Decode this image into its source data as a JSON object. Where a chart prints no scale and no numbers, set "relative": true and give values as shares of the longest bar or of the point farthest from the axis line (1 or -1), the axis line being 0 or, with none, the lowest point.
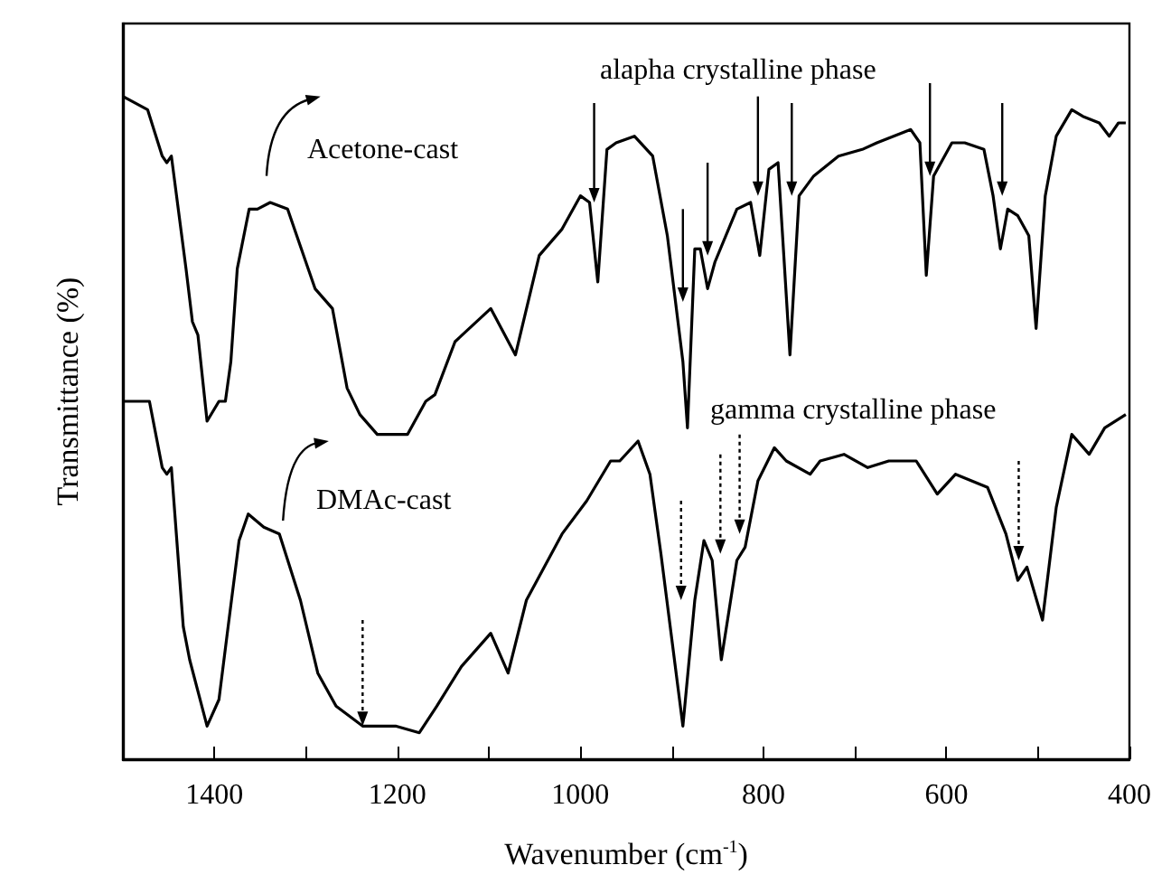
{
  "chart_data": {
    "type": "line",
    "xlabel": "Wavenumber (cm$^{-1}$)",
    "ylabel": "Transmittance (%)",
    "relative": true,
    "tick_labels": "x",
    "xlim": [
      1500,
      400
    ],
    "xticks": [
      {
        "value": 1500,
        "label": null
      },
      1400,
      {
        "value": 1300,
        "label": null
      },
      1200,
      {
        "value": 1100,
        "label": null
      },
      1000,
      {
        "value": 900,
        "label": null
      },
      800,
      {
        "value": 700,
        "label": null
      },
      600,
      {
        "value": 500,
        "label": null
      },
      400
    ],
    "annotations": [
      "Acetone-cast",
      "DMAc-cast",
      "alapha crystalline phase",
      "gamma crystalline phase"
    ],
    "series": [
      {
        "color": "#000000",
        "x": [
          1500,
          1473,
          1457,
          1452,
          1447,
          1431,
          1424,
          1418,
          1408,
          1395,
          1388,
          1382,
          1375,
          1362,
          1353,
          1339,
          1320,
          1300,
          1290,
          1271,
          1255,
          1241,
          1222,
          1189,
          1169,
          1159,
          1137,
          1098,
          1071,
          1045,
          1020,
          1000,
          990,
          981,
          971,
          961,
          941,
          921,
          905,
          888,
          883,
          875,
          869,
          861,
          853,
          829,
          814,
          804,
          794,
          784,
          771,
          761,
          745,
          718,
          692,
          676,
          639,
          629,
          622,
          614,
          594,
          580,
          559,
          549,
          541,
          533,
          522,
          510,
          502,
          492,
          480,
          463,
          451,
          433,
          422,
          412,
          404
        ],
        "values": [
          1.0,
          0.98,
          0.91,
          0.9,
          0.91,
          0.74,
          0.66,
          0.64,
          0.51,
          0.54,
          0.54,
          0.6,
          0.74,
          0.83,
          0.83,
          0.84,
          0.83,
          0.75,
          0.71,
          0.68,
          0.56,
          0.52,
          0.49,
          0.49,
          0.54,
          0.55,
          0.63,
          0.68,
          0.61,
          0.76,
          0.8,
          0.85,
          0.84,
          0.72,
          0.92,
          0.93,
          0.94,
          0.91,
          0.79,
          0.6,
          0.5,
          0.77,
          0.77,
          0.71,
          0.75,
          0.83,
          0.84,
          0.76,
          0.89,
          0.9,
          0.61,
          0.85,
          0.88,
          0.91,
          0.92,
          0.93,
          0.95,
          0.93,
          0.73,
          0.88,
          0.93,
          0.93,
          0.92,
          0.85,
          0.77,
          0.83,
          0.82,
          0.79,
          0.65,
          0.85,
          0.94,
          0.98,
          0.97,
          0.96,
          0.94,
          0.96,
          0.96
        ]
      },
      {
        "color": "#000000",
        "x": [
          1500,
          1471,
          1457,
          1452,
          1447,
          1434,
          1427,
          1408,
          1395,
          1385,
          1373,
          1363,
          1346,
          1329,
          1306,
          1287,
          1267,
          1238,
          1225,
          1202,
          1176,
          1157,
          1130,
          1098,
          1079,
          1059,
          1020,
          993,
          967,
          957,
          937,
          924,
          912,
          888,
          875,
          865,
          856,
          846,
          829,
          820,
          806,
          788,
          775,
          749,
          738,
          712,
          686,
          663,
          633,
          610,
          590,
          555,
          535,
          522,
          512,
          495,
          480,
          463,
          444,
          427,
          404
        ],
        "values": [
          0.54,
          0.54,
          0.44,
          0.43,
          0.44,
          0.2,
          0.15,
          0.05,
          0.09,
          0.2,
          0.33,
          0.37,
          0.35,
          0.34,
          0.24,
          0.13,
          0.08,
          0.05,
          0.05,
          0.05,
          0.04,
          0.08,
          0.14,
          0.19,
          0.13,
          0.24,
          0.34,
          0.39,
          0.45,
          0.45,
          0.48,
          0.43,
          0.31,
          0.05,
          0.24,
          0.33,
          0.3,
          0.15,
          0.3,
          0.32,
          0.42,
          0.47,
          0.45,
          0.43,
          0.45,
          0.46,
          0.44,
          0.45,
          0.45,
          0.4,
          0.43,
          0.41,
          0.34,
          0.27,
          0.29,
          0.21,
          0.38,
          0.49,
          0.46,
          0.5,
          0.52
        ]
      }
    ]
  }
}
